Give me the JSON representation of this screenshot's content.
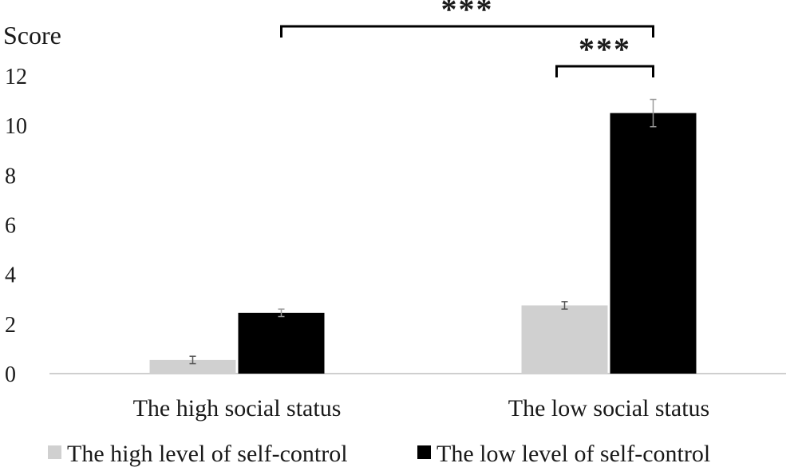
{
  "chart_data": {
    "type": "bar",
    "title": "",
    "xlabel": "",
    "ylabel": "Score",
    "ylim": [
      0,
      12
    ],
    "yticks": [
      0,
      2,
      4,
      6,
      8,
      10,
      12
    ],
    "categories": [
      "The high  social status",
      "The low social status"
    ],
    "series": [
      {
        "name": "The high level of self-control",
        "values": [
          0.55,
          2.75
        ],
        "errors": [
          0.15,
          0.15
        ],
        "color": "#d0d0d0"
      },
      {
        "name": "The low level of self-control",
        "values": [
          2.45,
          10.5
        ],
        "errors": [
          0.15,
          0.55
        ],
        "color": "#000000"
      }
    ],
    "significance": [
      {
        "label": "***",
        "from": "The high  social status / The low level of self-control",
        "to": "The low social status / The low level of self-control"
      },
      {
        "label": "***",
        "from": "The low social status / The high level of self-control",
        "to": "The low social status / The low level of self-control"
      }
    ],
    "grid": false,
    "legend": "bottom"
  }
}
